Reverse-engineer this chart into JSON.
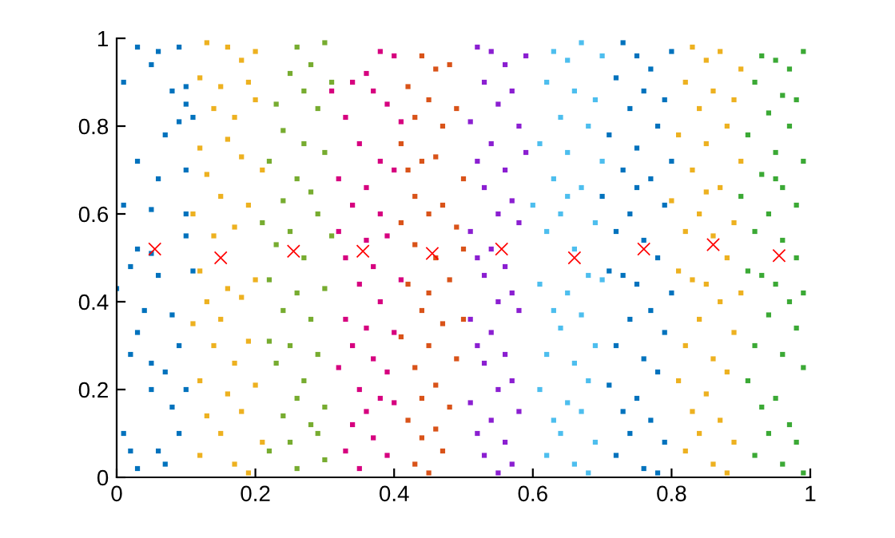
{
  "chart_data": {
    "type": "scatter",
    "xlim": [
      0,
      1
    ],
    "ylim": [
      0,
      1
    ],
    "xticks": [
      0,
      0.2,
      0.4,
      0.6,
      0.8,
      1
    ],
    "yticks": [
      0,
      0.2,
      0.4,
      0.6,
      0.8,
      1
    ],
    "grid": false,
    "legend": false,
    "series": [
      {
        "color": "#0072bd",
        "marker": "square",
        "x": [
          0.01,
          0.03,
          0.05,
          0.06,
          0.09,
          0.08,
          0.1,
          0.03,
          0.07,
          0.09,
          0.11,
          0.06,
          0.1,
          0.01,
          0.05,
          0.1,
          0.1,
          0.03,
          0.05,
          0.02,
          0.06,
          0.11,
          0.04,
          0.08,
          0.03,
          0.09,
          0.02,
          0.05,
          0.07,
          0.05,
          0.1,
          0.08,
          0.01,
          0.09,
          0.06,
          0.03,
          0.0,
          0.02,
          0.07,
          0.1
        ],
        "values": [
          0.9,
          0.98,
          0.94,
          0.97,
          0.98,
          0.88,
          0.89,
          0.72,
          0.78,
          0.81,
          0.82,
          0.68,
          0.7,
          0.62,
          0.61,
          0.6,
          0.55,
          0.52,
          0.51,
          0.48,
          0.46,
          0.47,
          0.38,
          0.37,
          0.33,
          0.3,
          0.28,
          0.26,
          0.24,
          0.2,
          0.2,
          0.16,
          0.1,
          0.1,
          0.06,
          0.02,
          0.43,
          0.06,
          0.03,
          0.85
        ]
      },
      {
        "color": "#edb120",
        "marker": "square",
        "x": [
          0.13,
          0.16,
          0.18,
          0.2,
          0.12,
          0.15,
          0.19,
          0.14,
          0.17,
          0.2,
          0.12,
          0.16,
          0.13,
          0.18,
          0.21,
          0.15,
          0.11,
          0.19,
          0.14,
          0.17,
          0.12,
          0.16,
          0.2,
          0.13,
          0.18,
          0.15,
          0.11,
          0.19,
          0.14,
          0.17,
          0.12,
          0.16,
          0.2,
          0.13,
          0.18,
          0.15,
          0.21,
          0.12,
          0.17,
          0.19
        ],
        "values": [
          0.99,
          0.98,
          0.95,
          0.97,
          0.91,
          0.89,
          0.9,
          0.84,
          0.82,
          0.86,
          0.75,
          0.77,
          0.69,
          0.73,
          0.7,
          0.64,
          0.6,
          0.62,
          0.55,
          0.57,
          0.47,
          0.43,
          0.45,
          0.4,
          0.41,
          0.36,
          0.35,
          0.31,
          0.3,
          0.26,
          0.22,
          0.19,
          0.21,
          0.14,
          0.15,
          0.1,
          0.08,
          0.05,
          0.03,
          0.01
        ]
      },
      {
        "color": "#77ac30",
        "marker": "square",
        "x": [
          0.26,
          0.28,
          0.3,
          0.25,
          0.27,
          0.23,
          0.29,
          0.31,
          0.24,
          0.27,
          0.22,
          0.26,
          0.3,
          0.24,
          0.28,
          0.21,
          0.25,
          0.29,
          0.23,
          0.27,
          0.31,
          0.22,
          0.26,
          0.3,
          0.24,
          0.28,
          0.22,
          0.25,
          0.29,
          0.23,
          0.27,
          0.26,
          0.3,
          0.24,
          0.28,
          0.25,
          0.22,
          0.3,
          0.26,
          0.29
        ],
        "values": [
          0.98,
          0.94,
          0.99,
          0.92,
          0.88,
          0.85,
          0.84,
          0.9,
          0.79,
          0.76,
          0.72,
          0.68,
          0.74,
          0.63,
          0.65,
          0.58,
          0.56,
          0.6,
          0.53,
          0.5,
          0.55,
          0.45,
          0.42,
          0.43,
          0.38,
          0.36,
          0.31,
          0.3,
          0.28,
          0.26,
          0.22,
          0.18,
          0.16,
          0.14,
          0.12,
          0.08,
          0.06,
          0.04,
          0.02,
          0.1
        ]
      },
      {
        "color": "#d6007f",
        "marker": "square",
        "x": [
          0.36,
          0.38,
          0.4,
          0.34,
          0.37,
          0.33,
          0.39,
          0.41,
          0.35,
          0.38,
          0.32,
          0.36,
          0.4,
          0.34,
          0.38,
          0.32,
          0.36,
          0.39,
          0.33,
          0.37,
          0.41,
          0.35,
          0.38,
          0.33,
          0.36,
          0.4,
          0.34,
          0.37,
          0.32,
          0.39,
          0.35,
          0.38,
          0.36,
          0.4,
          0.34,
          0.37,
          0.33,
          0.39,
          0.35,
          0.31
        ],
        "values": [
          0.92,
          0.97,
          0.96,
          0.9,
          0.88,
          0.82,
          0.85,
          0.81,
          0.76,
          0.72,
          0.68,
          0.66,
          0.7,
          0.62,
          0.6,
          0.56,
          0.54,
          0.55,
          0.5,
          0.48,
          0.45,
          0.44,
          0.4,
          0.36,
          0.34,
          0.33,
          0.3,
          0.27,
          0.25,
          0.24,
          0.2,
          0.18,
          0.15,
          0.17,
          0.12,
          0.09,
          0.06,
          0.05,
          0.02,
          0.88
        ]
      },
      {
        "color": "#d95319",
        "marker": "square",
        "x": [
          0.44,
          0.46,
          0.48,
          0.42,
          0.45,
          0.43,
          0.47,
          0.49,
          0.41,
          0.44,
          0.42,
          0.46,
          0.5,
          0.43,
          0.47,
          0.41,
          0.45,
          0.49,
          0.43,
          0.46,
          0.5,
          0.42,
          0.45,
          0.48,
          0.44,
          0.47,
          0.41,
          0.45,
          0.49,
          0.43,
          0.46,
          0.44,
          0.48,
          0.42,
          0.46,
          0.44,
          0.47,
          0.43,
          0.45,
          0.5
        ],
        "values": [
          0.96,
          0.93,
          0.94,
          0.89,
          0.86,
          0.82,
          0.8,
          0.84,
          0.76,
          0.72,
          0.7,
          0.73,
          0.68,
          0.64,
          0.62,
          0.58,
          0.6,
          0.57,
          0.53,
          0.5,
          0.52,
          0.44,
          0.42,
          0.45,
          0.38,
          0.35,
          0.32,
          0.3,
          0.27,
          0.25,
          0.21,
          0.18,
          0.16,
          0.13,
          0.11,
          0.09,
          0.06,
          0.03,
          0.01,
          0.36
        ]
      },
      {
        "color": "#8b1fd1",
        "marker": "square",
        "x": [
          0.52,
          0.54,
          0.56,
          0.59,
          0.53,
          0.57,
          0.55,
          0.51,
          0.58,
          0.54,
          0.52,
          0.56,
          0.59,
          0.53,
          0.57,
          0.55,
          0.51,
          0.58,
          0.54,
          0.52,
          0.56,
          0.53,
          0.57,
          0.55,
          0.51,
          0.58,
          0.54,
          0.52,
          0.56,
          0.53,
          0.57,
          0.55,
          0.51,
          0.58,
          0.54,
          0.52,
          0.56,
          0.53,
          0.57,
          0.55
        ],
        "values": [
          0.98,
          0.97,
          0.94,
          0.96,
          0.9,
          0.88,
          0.85,
          0.81,
          0.8,
          0.76,
          0.72,
          0.7,
          0.74,
          0.66,
          0.63,
          0.6,
          0.56,
          0.58,
          0.52,
          0.5,
          0.48,
          0.46,
          0.42,
          0.4,
          0.36,
          0.38,
          0.33,
          0.3,
          0.28,
          0.26,
          0.22,
          0.2,
          0.17,
          0.15,
          0.13,
          0.1,
          0.08,
          0.05,
          0.03,
          0.01
        ]
      },
      {
        "color": "#4dbeee",
        "marker": "square",
        "x": [
          0.63,
          0.65,
          0.67,
          0.7,
          0.62,
          0.66,
          0.69,
          0.64,
          0.68,
          0.61,
          0.65,
          0.7,
          0.63,
          0.67,
          0.6,
          0.64,
          0.69,
          0.62,
          0.66,
          0.68,
          0.61,
          0.65,
          0.7,
          0.63,
          0.67,
          0.64,
          0.69,
          0.62,
          0.66,
          0.68,
          0.61,
          0.65,
          0.63,
          0.67,
          0.64,
          0.69,
          0.62,
          0.66,
          0.68,
          0.65
        ],
        "values": [
          0.97,
          0.95,
          0.99,
          0.96,
          0.9,
          0.88,
          0.86,
          0.82,
          0.8,
          0.76,
          0.74,
          0.72,
          0.68,
          0.66,
          0.62,
          0.6,
          0.58,
          0.56,
          0.52,
          0.46,
          0.44,
          0.42,
          0.45,
          0.38,
          0.37,
          0.34,
          0.3,
          0.28,
          0.26,
          0.22,
          0.2,
          0.17,
          0.13,
          0.15,
          0.1,
          0.08,
          0.05,
          0.03,
          0.01,
          0.64
        ]
      },
      {
        "color": "#0072bd",
        "marker": "square",
        "x": [
          0.73,
          0.75,
          0.77,
          0.8,
          0.72,
          0.76,
          0.79,
          0.74,
          0.78,
          0.71,
          0.75,
          0.8,
          0.73,
          0.77,
          0.7,
          0.74,
          0.79,
          0.72,
          0.76,
          0.78,
          0.71,
          0.75,
          0.8,
          0.73,
          0.77,
          0.74,
          0.79,
          0.72,
          0.76,
          0.78,
          0.71,
          0.75,
          0.73,
          0.77,
          0.74,
          0.79,
          0.72,
          0.76,
          0.78,
          0.75
        ],
        "values": [
          0.99,
          0.96,
          0.93,
          0.97,
          0.91,
          0.88,
          0.86,
          0.84,
          0.8,
          0.78,
          0.75,
          0.72,
          0.7,
          0.68,
          0.64,
          0.6,
          0.62,
          0.56,
          0.54,
          0.5,
          0.47,
          0.44,
          0.42,
          0.46,
          0.38,
          0.36,
          0.33,
          0.3,
          0.27,
          0.24,
          0.21,
          0.18,
          0.15,
          0.13,
          0.1,
          0.08,
          0.05,
          0.02,
          0.01,
          0.66
        ]
      },
      {
        "color": "#edb120",
        "marker": "square",
        "x": [
          0.83,
          0.85,
          0.87,
          0.9,
          0.82,
          0.86,
          0.89,
          0.84,
          0.88,
          0.81,
          0.85,
          0.9,
          0.83,
          0.87,
          0.8,
          0.84,
          0.89,
          0.82,
          0.86,
          0.88,
          0.81,
          0.85,
          0.9,
          0.83,
          0.87,
          0.84,
          0.89,
          0.82,
          0.86,
          0.88,
          0.81,
          0.85,
          0.83,
          0.87,
          0.84,
          0.89,
          0.82,
          0.86,
          0.88,
          0.85
        ],
        "values": [
          0.98,
          0.95,
          0.97,
          0.93,
          0.9,
          0.88,
          0.86,
          0.84,
          0.8,
          0.78,
          0.76,
          0.72,
          0.7,
          0.66,
          0.63,
          0.6,
          0.58,
          0.56,
          0.55,
          0.5,
          0.47,
          0.44,
          0.42,
          0.45,
          0.4,
          0.36,
          0.33,
          0.3,
          0.27,
          0.24,
          0.22,
          0.19,
          0.15,
          0.13,
          0.1,
          0.08,
          0.06,
          0.03,
          0.01,
          0.65
        ]
      },
      {
        "color": "#3ba935",
        "marker": "square",
        "x": [
          0.93,
          0.95,
          0.97,
          0.99,
          0.92,
          0.96,
          0.98,
          0.94,
          0.97,
          0.91,
          0.95,
          0.99,
          0.93,
          0.96,
          0.9,
          0.94,
          0.98,
          0.92,
          0.96,
          0.98,
          0.91,
          0.95,
          0.99,
          0.93,
          0.97,
          0.94,
          0.98,
          0.92,
          0.96,
          0.99,
          0.91,
          0.95,
          0.93,
          0.97,
          0.94,
          0.98,
          0.92,
          0.96,
          0.99,
          0.95
        ],
        "values": [
          0.96,
          0.95,
          0.93,
          0.97,
          0.9,
          0.87,
          0.86,
          0.83,
          0.8,
          0.78,
          0.74,
          0.72,
          0.69,
          0.66,
          0.64,
          0.6,
          0.62,
          0.56,
          0.54,
          0.5,
          0.47,
          0.44,
          0.42,
          0.46,
          0.4,
          0.37,
          0.34,
          0.3,
          0.28,
          0.25,
          0.22,
          0.18,
          0.16,
          0.12,
          0.1,
          0.08,
          0.05,
          0.03,
          0.01,
          0.68
        ]
      },
      {
        "color": "#ff0000",
        "marker": "cross",
        "x": [
          0.055,
          0.15,
          0.255,
          0.355,
          0.455,
          0.555,
          0.66,
          0.76,
          0.86,
          0.955
        ],
        "values": [
          0.52,
          0.5,
          0.515,
          0.515,
          0.51,
          0.52,
          0.5,
          0.52,
          0.53,
          0.505
        ]
      }
    ]
  }
}
